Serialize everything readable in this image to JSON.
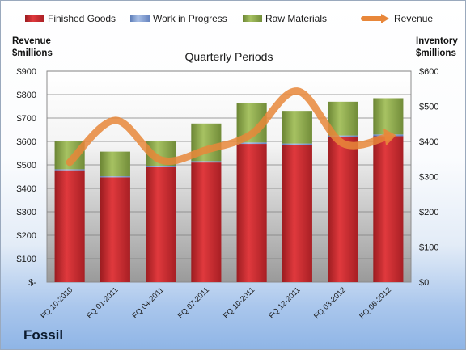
{
  "company": "Fossil",
  "chart_data": {
    "type": "bar",
    "subtitle": "Quarterly Periods",
    "ylabel_left": "Revenue\n$millions",
    "ylabel_right": "Inventory\n$millions",
    "ylim_left": [
      0,
      900
    ],
    "ylim_right": [
      0,
      600
    ],
    "left_ticks": [
      "$-",
      "$100",
      "$200",
      "$300",
      "$400",
      "$500",
      "$600",
      "$700",
      "$800",
      "$900"
    ],
    "right_ticks": [
      "$0",
      "$100",
      "$200",
      "$300",
      "$400",
      "$500",
      "$600"
    ],
    "categories": [
      "FQ 10-2010",
      "FQ 01-2011",
      "FQ 04-2011",
      "FQ 07-2011",
      "FQ 10-2011",
      "FQ 12-2011",
      "FQ 03-2012",
      "FQ 06-2012"
    ],
    "series": [
      {
        "name": "Finished Goods",
        "kind": "stacked-bar",
        "axis": "right",
        "color": "#c0282d",
        "values": [
          318,
          298,
          328,
          340,
          393,
          390,
          413,
          415
        ]
      },
      {
        "name": "Work in Progress",
        "kind": "stacked-bar",
        "axis": "right",
        "color": "#7d9ad0",
        "values": [
          3,
          3,
          3,
          4,
          4,
          4,
          4,
          5
        ]
      },
      {
        "name": "Raw Materials",
        "kind": "stacked-bar",
        "axis": "right",
        "color": "#8aa648",
        "values": [
          80,
          70,
          69,
          107,
          112,
          93,
          96,
          103
        ]
      },
      {
        "name": "Revenue",
        "kind": "line",
        "axis": "left",
        "color": "#e8873a",
        "values": [
          511,
          690,
          521,
          564,
          632,
          815,
          592,
          621
        ]
      }
    ],
    "legend_position": "top",
    "grid": true
  }
}
